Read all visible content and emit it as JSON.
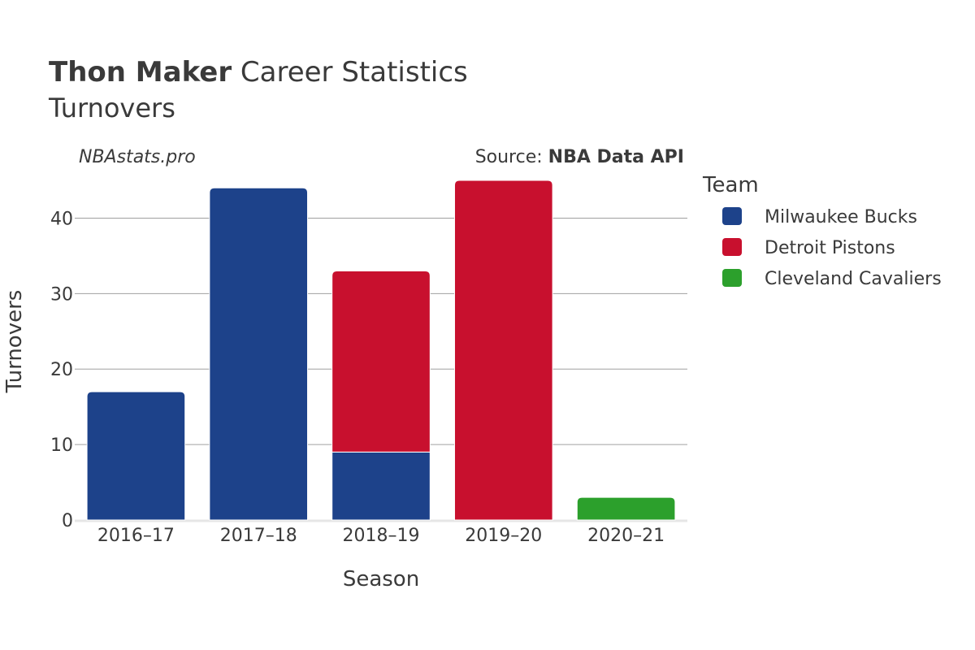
{
  "header": {
    "player": "Thon Maker",
    "title_rest": " Career Statistics",
    "subtitle": "Turnovers",
    "site": "NBAstats.pro",
    "source_prefix": "Source: ",
    "source_name": "NBA Data API"
  },
  "legend": {
    "title": "Team",
    "placement": "right"
  },
  "colors": {
    "Milwaukee Bucks": "#1d428a",
    "Detroit Pistons": "#c8102e",
    "Cleveland Cavaliers": "#2ca02c",
    "grid": "#a0a0a0",
    "axis_baseline": "#e6e6e6",
    "text": "#3a3a3a"
  },
  "chart_data": {
    "type": "bar",
    "stacked": true,
    "title": "Thon Maker Career Statistics",
    "subtitle": "Turnovers",
    "xlabel": "Season",
    "ylabel": "Turnovers",
    "categories": [
      "2016–17",
      "2017–18",
      "2018–19",
      "2019–20",
      "2020–21"
    ],
    "series": [
      {
        "name": "Milwaukee Bucks",
        "values": [
          17,
          44,
          9,
          0,
          0
        ]
      },
      {
        "name": "Detroit Pistons",
        "values": [
          0,
          0,
          24,
          45,
          0
        ]
      },
      {
        "name": "Cleveland Cavaliers",
        "values": [
          0,
          0,
          0,
          0,
          3
        ]
      }
    ],
    "ylim": [
      0,
      45
    ],
    "yticks": [
      0,
      10,
      20,
      30,
      40
    ],
    "grid": true
  }
}
